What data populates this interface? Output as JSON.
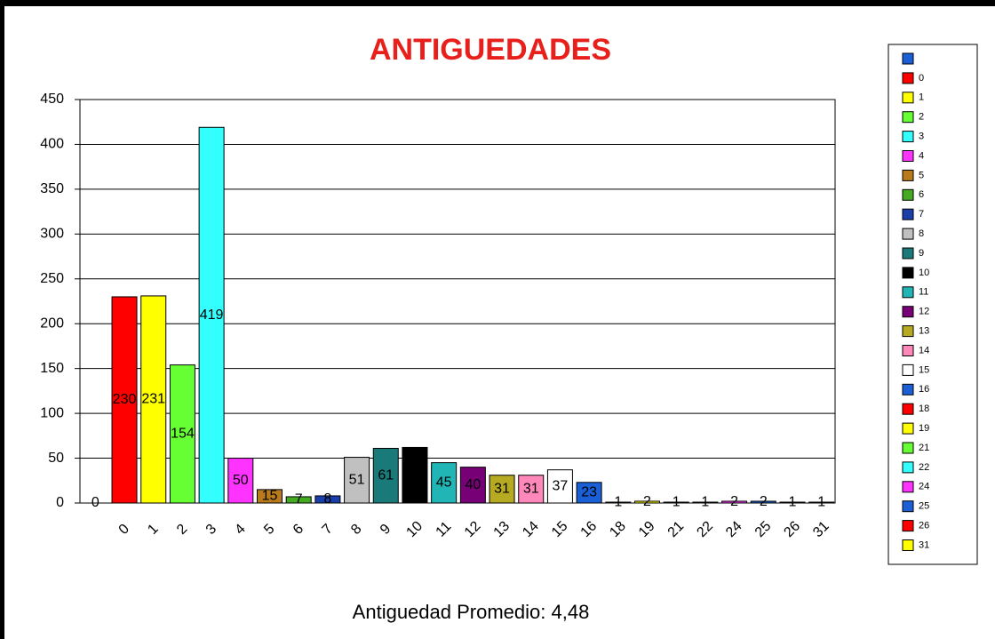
{
  "chart_data": {
    "type": "bar",
    "title": "ANTIGUEDADES",
    "subtitle": "Antiguedad Promedio: 4,48",
    "categories": [
      null,
      "0",
      "1",
      "2",
      "3",
      "4",
      "5",
      "6",
      "7",
      "8",
      "9",
      "10",
      "11",
      "12",
      "13",
      "14",
      "15",
      "16",
      "18",
      "19",
      "21",
      "22",
      "24",
      "25",
      "26",
      "31"
    ],
    "values": [
      0,
      230,
      231,
      154,
      419,
      50,
      15,
      7,
      8,
      51,
      61,
      62,
      45,
      40,
      31,
      31,
      37,
      23,
      1,
      2,
      1,
      1,
      2,
      2,
      1,
      1
    ],
    "colors": [
      "#1a5fd6",
      "#ff0000",
      "#ffff00",
      "#66ff33",
      "#33ffff",
      "#ff33ff",
      "#b87a1a",
      "#44aa22",
      "#1a3faa",
      "#c0c0c0",
      "#1a7a7a",
      "#000000",
      "#22b5b5",
      "#770077",
      "#b5aa22",
      "#ff88bb",
      "#ffffff",
      "#1a5fd6",
      "#ff0000",
      "#ffff00",
      "#66ff33",
      "#33ffff",
      "#ff33ff",
      "#1a5fd6",
      "#ff0000",
      "#ffff00"
    ],
    "ylim": [
      0,
      450
    ],
    "yticks": [
      0,
      50,
      100,
      150,
      200,
      250,
      300,
      350,
      400,
      450
    ],
    "grid": true,
    "legend": "right"
  }
}
